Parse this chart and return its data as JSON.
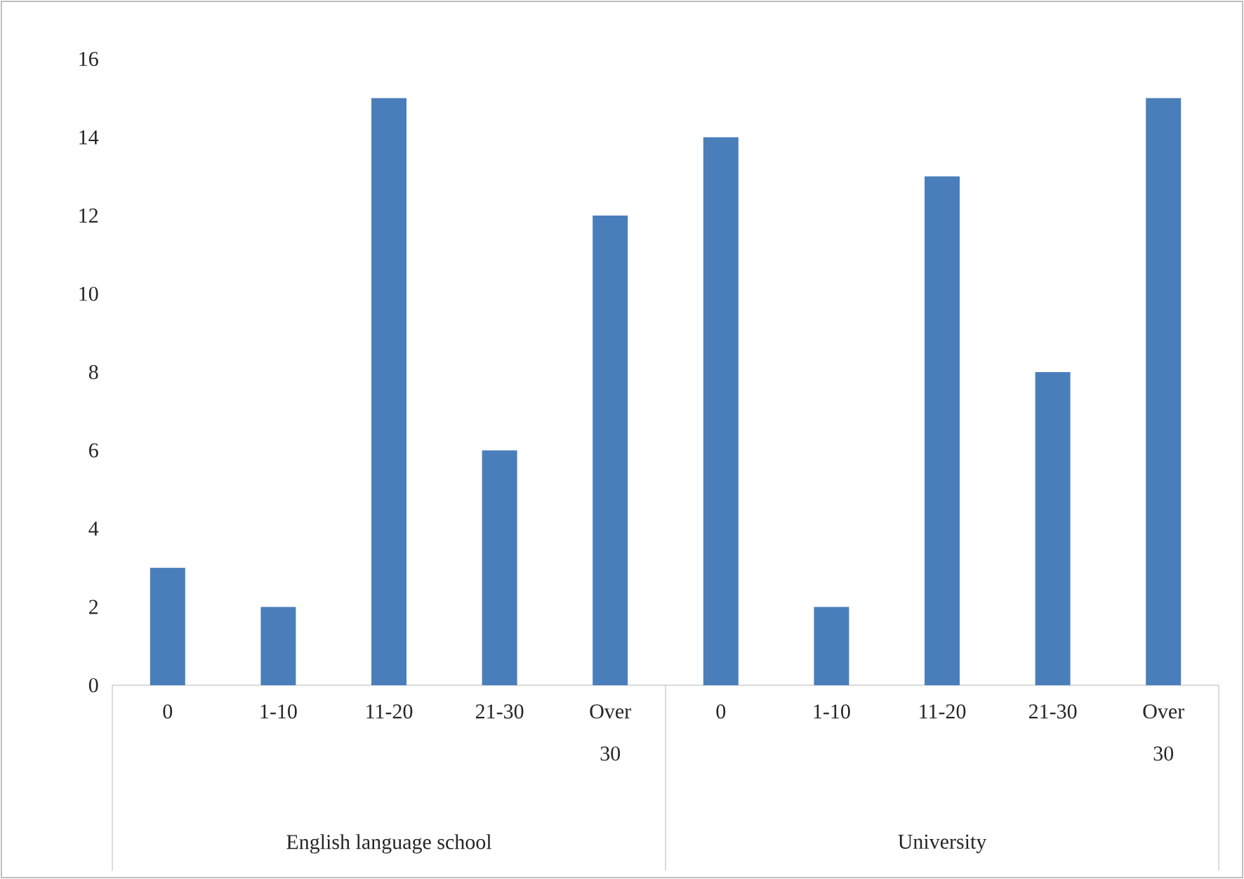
{
  "chart_data": {
    "type": "bar",
    "categories": [
      "0",
      "1-10",
      "11-20",
      "21-30",
      "Over 30",
      "0",
      "1-10",
      "11-20",
      "21-30",
      "Over 30"
    ],
    "values": [
      3,
      2,
      15,
      6,
      12,
      14,
      2,
      13,
      8,
      15
    ],
    "color": "#4a7ebb",
    "ylim": [
      0,
      16
    ],
    "yticks": [
      0,
      2,
      4,
      6,
      8,
      10,
      12,
      14,
      16
    ],
    "annotations": [
      "English language school",
      "University"
    ]
  }
}
